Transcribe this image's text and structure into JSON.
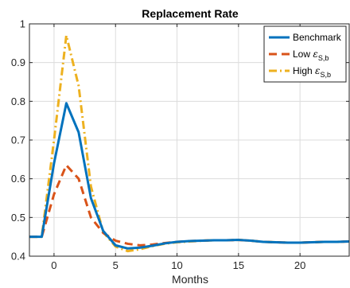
{
  "chart_data": {
    "type": "line",
    "title": "Replacement Rate",
    "xlabel": "Months",
    "ylabel": "",
    "xlim": [
      -2,
      24
    ],
    "ylim": [
      0.4,
      1.0
    ],
    "xticks": [
      0,
      5,
      10,
      15,
      20
    ],
    "yticks": [
      0.4,
      0.5,
      0.6,
      0.7,
      0.8,
      0.9,
      1.0
    ],
    "ytick_labels": [
      "0.4",
      "0.5",
      "0.6",
      "0.7",
      "0.8",
      "0.9",
      "1"
    ],
    "grid": true,
    "legend_position": "top-right",
    "x": [
      -2,
      -1,
      0,
      1,
      2,
      3,
      4,
      5,
      6,
      7,
      8,
      9,
      10,
      11,
      12,
      13,
      14,
      15,
      16,
      17,
      18,
      19,
      20,
      21,
      22,
      23,
      24
    ],
    "series": [
      {
        "name": "Benchmark",
        "legend_main": "Benchmark",
        "legend_eps": "",
        "legend_sub": "",
        "color": "#0072BD",
        "dash": "solid",
        "values": [
          0.45,
          0.45,
          0.64,
          0.795,
          0.72,
          0.55,
          0.465,
          0.428,
          0.42,
          0.422,
          0.427,
          0.433,
          0.437,
          0.439,
          0.44,
          0.441,
          0.441,
          0.442,
          0.44,
          0.437,
          0.436,
          0.435,
          0.435,
          0.436,
          0.437,
          0.437,
          0.438
        ]
      },
      {
        "name": "Low ε_S,b",
        "legend_main": "Low ",
        "legend_eps": "ε",
        "legend_sub": "S,b",
        "color": "#D95319",
        "dash": "dashed",
        "values": [
          0.45,
          0.45,
          0.56,
          0.635,
          0.6,
          0.5,
          0.46,
          0.44,
          0.432,
          0.428,
          0.43,
          0.434,
          0.437,
          0.439,
          0.44,
          0.441,
          0.441,
          0.442,
          0.44,
          0.437,
          0.436,
          0.435,
          0.435,
          0.436,
          0.437,
          0.437,
          0.438
        ]
      },
      {
        "name": "High ε_S,b",
        "legend_main": "High ",
        "legend_eps": "ε",
        "legend_sub": "S,b",
        "color": "#EDB120",
        "dash": "dashdot",
        "values": [
          0.45,
          0.45,
          0.7,
          0.97,
          0.84,
          0.58,
          0.462,
          0.425,
          0.413,
          0.418,
          0.426,
          0.432,
          0.436,
          0.438,
          0.44,
          0.441,
          0.441,
          0.442,
          0.44,
          0.437,
          0.436,
          0.435,
          0.435,
          0.436,
          0.437,
          0.437,
          0.438
        ]
      }
    ]
  }
}
